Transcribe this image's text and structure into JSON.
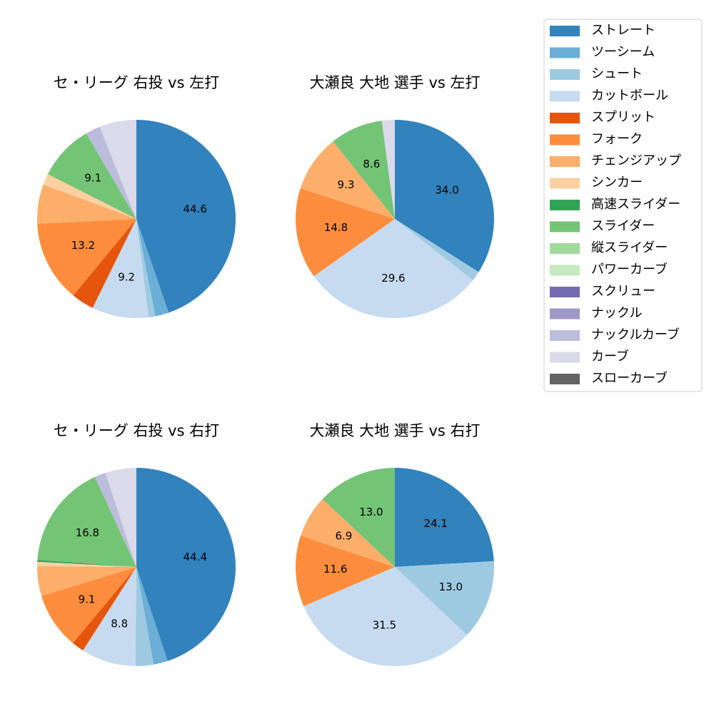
{
  "chart_data": [
    {
      "type": "pie",
      "title": "セ・リーグ 右投 vs 左打",
      "categories": [
        "ストレート",
        "ツーシーム",
        "シュート",
        "カットボール",
        "スプリット",
        "フォーク",
        "チェンジアップ",
        "シンカー",
        "スライダー",
        "ナックルカーブ",
        "カーブ"
      ],
      "values": [
        44.6,
        2.2,
        1.1,
        9.2,
        3.7,
        13.2,
        6.4,
        1.8,
        9.1,
        2.4,
        6.0
      ],
      "value_labels": [
        "44.6",
        null,
        null,
        "9.2",
        null,
        "13.2",
        null,
        null,
        "9.1",
        null,
        null
      ]
    },
    {
      "type": "pie",
      "title": "大瀬良 大地 選手 vs 左打",
      "categories": [
        "ストレート",
        "シュート",
        "カットボール",
        "フォーク",
        "チェンジアップ",
        "スライダー",
        "カーブ"
      ],
      "values": [
        34.0,
        1.6,
        29.6,
        14.8,
        9.3,
        8.6,
        2.1
      ],
      "value_labels": [
        "34.0",
        null,
        "29.6",
        "14.8",
        "9.3",
        "8.6",
        null
      ]
    },
    {
      "type": "pie",
      "title": "セ・リーグ 右投 vs 右打",
      "categories": [
        "ストレート",
        "ツーシーム",
        "シュート",
        "カットボール",
        "スプリット",
        "フォーク",
        "チェンジアップ",
        "シンカー",
        "高速スライダー",
        "スライダー",
        "ナックルカーブ",
        "カーブ"
      ],
      "values": [
        44.4,
        2.3,
        2.9,
        8.8,
        2.0,
        9.1,
        4.8,
        0.7,
        0.3,
        16.8,
        1.8,
        5.0
      ],
      "value_labels": [
        "44.4",
        null,
        null,
        "8.8",
        null,
        "9.1",
        null,
        null,
        null,
        "16.8",
        null,
        null
      ]
    },
    {
      "type": "pie",
      "title": "大瀬良 大地 選手 vs 右打",
      "categories": [
        "ストレート",
        "シュート",
        "カットボール",
        "フォーク",
        "チェンジアップ",
        "スライダー"
      ],
      "values": [
        24.1,
        13.0,
        31.5,
        11.6,
        6.9,
        13.0
      ],
      "value_labels": [
        "24.1",
        "13.0",
        "31.5",
        "11.6",
        "6.9",
        "13.0"
      ]
    }
  ],
  "legend": {
    "names": [
      "ストレート",
      "ツーシーム",
      "シュート",
      "カットボール",
      "スプリット",
      "フォーク",
      "チェンジアップ",
      "シンカー",
      "高速スライダー",
      "スライダー",
      "縦スライダー",
      "パワーカーブ",
      "スクリュー",
      "ナックル",
      "ナックルカーブ",
      "カーブ",
      "スローカーブ"
    ],
    "colors": [
      "#3182bd",
      "#6baed6",
      "#9ecae1",
      "#c6dbef",
      "#e6550d",
      "#fd8d3c",
      "#fdae6b",
      "#fdd0a2",
      "#31a354",
      "#74c476",
      "#a1d99b",
      "#c7e9c0",
      "#756bb1",
      "#9e9ac8",
      "#bcbddc",
      "#dadaeb",
      "#636363"
    ]
  }
}
